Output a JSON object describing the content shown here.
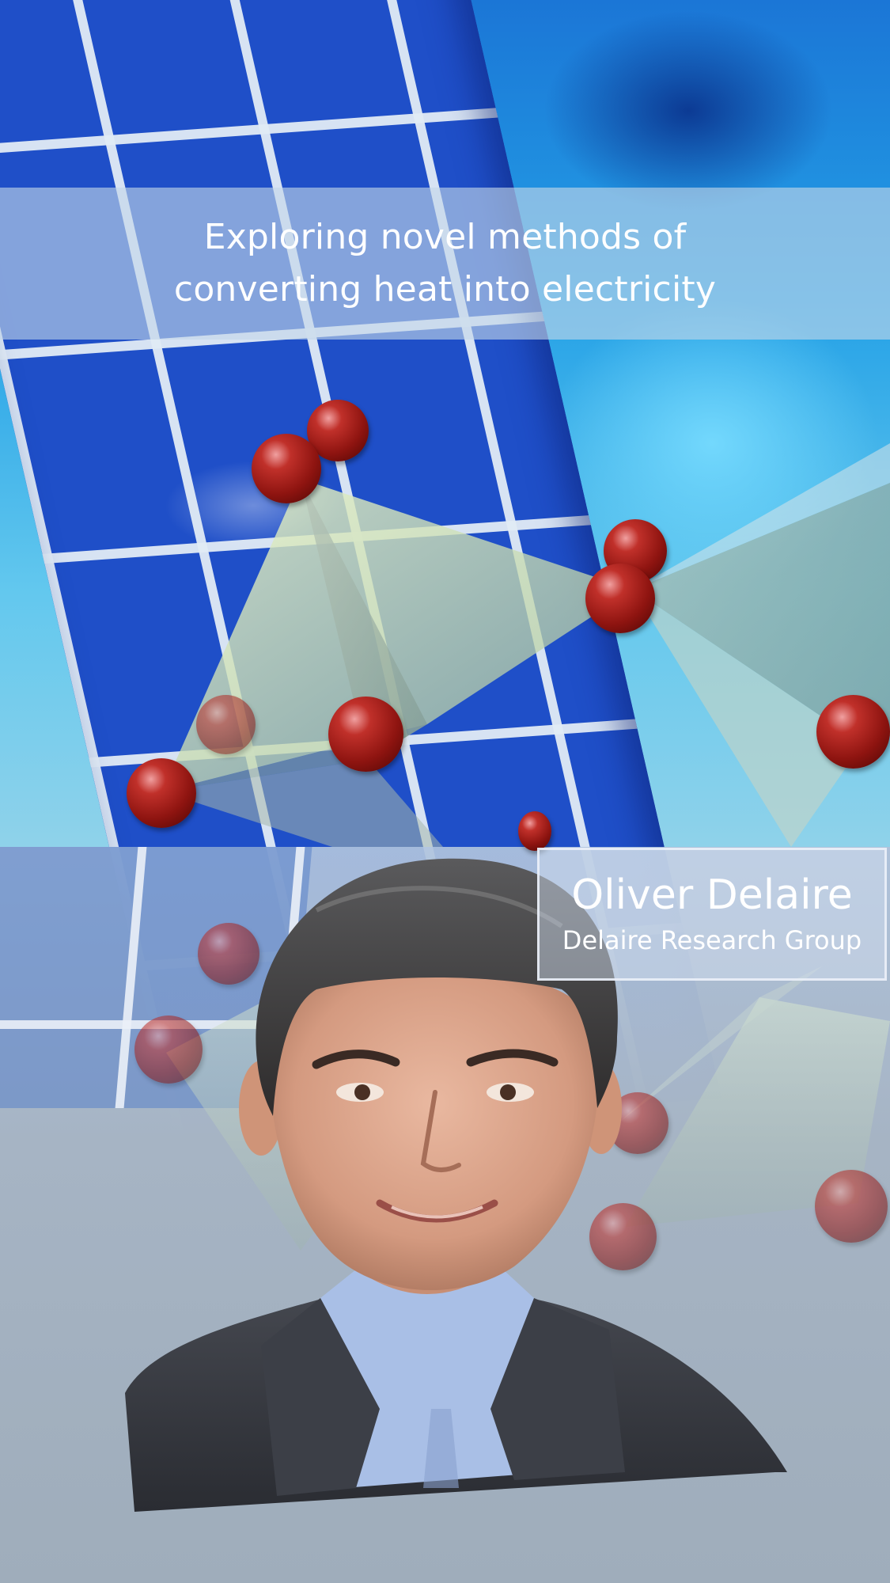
{
  "banner": {
    "text": "Exploring novel methods of converting heat into electricity"
  },
  "profile": {
    "name": "Oliver Delaire",
    "group": "Delaire Research Group"
  },
  "colors": {
    "panel_blue": "#1f4fc8",
    "sky_cyan": "#23a0e6",
    "atom_red": "#8e1410",
    "lower_grey": "#a3adb8"
  }
}
